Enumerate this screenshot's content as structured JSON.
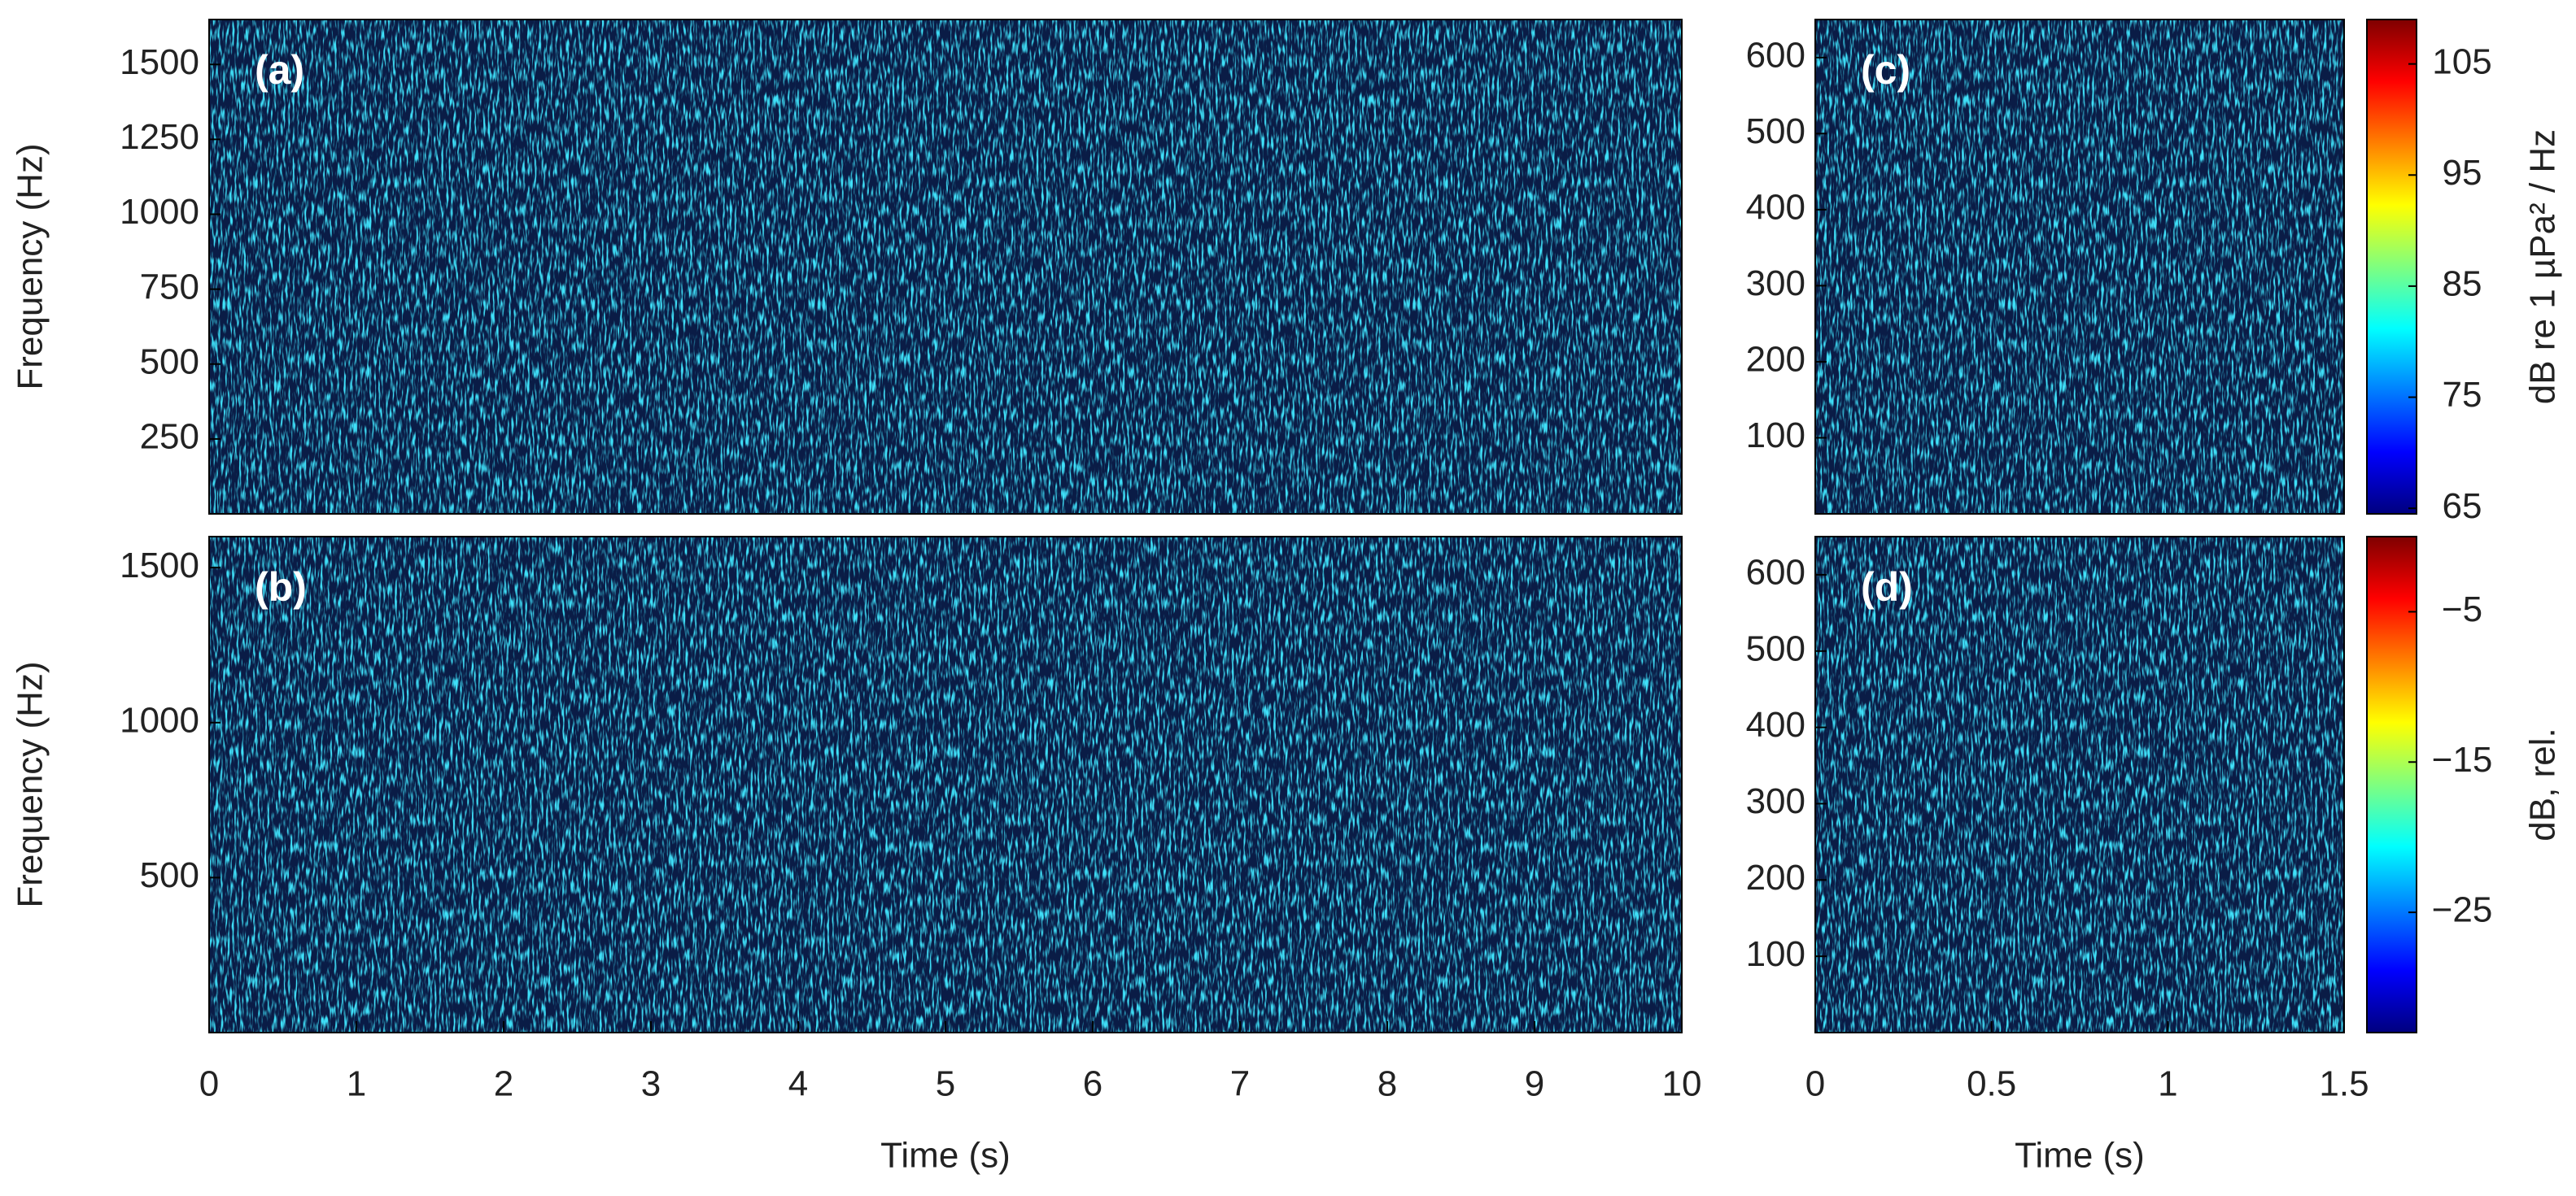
{
  "chart_data": [
    {
      "type": "heatmap",
      "panel_label": "(a)",
      "y_label": "Frequency (Hz)",
      "ylim": [
        0,
        1650
      ],
      "yticks": [
        250,
        500,
        750,
        1000,
        1250,
        1500
      ],
      "colormap": "jet"
    },
    {
      "type": "heatmap",
      "panel_label": "(b)",
      "y_label": "Frequency (Hz)",
      "x_label": "Time (s)",
      "xlim": [
        0,
        10
      ],
      "xticks": [
        0,
        1,
        2,
        3,
        4,
        5,
        6,
        7,
        8,
        9,
        10
      ],
      "ylim": [
        0,
        1600
      ],
      "yticks": [
        500,
        1000,
        1500
      ],
      "colormap": "jet"
    },
    {
      "type": "heatmap",
      "panel_label": "(c)",
      "ylim": [
        0,
        650
      ],
      "yticks": [
        100,
        200,
        300,
        400,
        500,
        600
      ],
      "colormap": "jet",
      "colorbar": {
        "label": "dB re 1 µPa² / Hz",
        "lim": [
          64.5,
          109
        ],
        "ticks": [
          65,
          75,
          85,
          95,
          105
        ]
      }
    },
    {
      "type": "heatmap",
      "panel_label": "(d)",
      "x_label": "Time (s)",
      "xlim": [
        0,
        1.5
      ],
      "xticks": [
        0,
        0.5,
        1,
        1.5
      ],
      "ylim": [
        0,
        650
      ],
      "yticks": [
        100,
        200,
        300,
        400,
        500,
        600
      ],
      "colormap": "jet",
      "colorbar": {
        "label": "dB, rel.",
        "lim": [
          -33,
          0
        ],
        "ticks": [
          {
            "value": -5,
            "label": "−5"
          },
          {
            "value": -15,
            "label": "−15"
          },
          {
            "value": -25,
            "label": "−25"
          }
        ]
      }
    }
  ]
}
